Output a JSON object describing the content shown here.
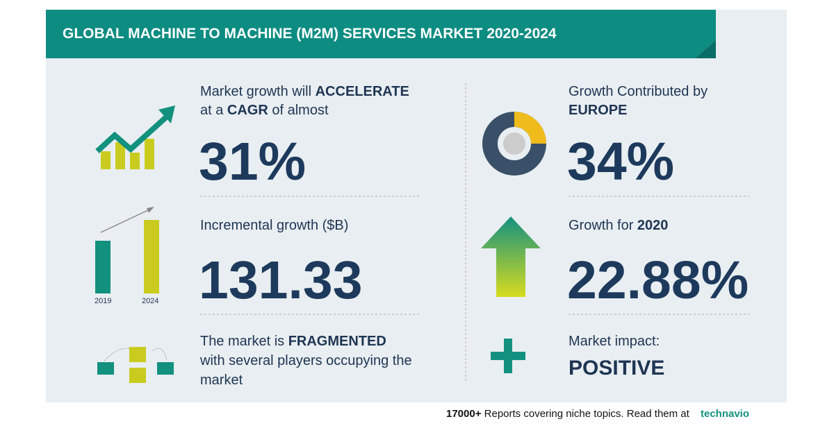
{
  "header": {
    "title": "GLOBAL MACHINE TO MACHINE (M2M) SERVICES MARKET 2020-2024"
  },
  "left": [
    {
      "text": [
        "Market growth will ",
        "ACCELERATE",
        "at a ",
        "CAGR",
        " of almost"
      ],
      "value": "31%"
    },
    {
      "text": [
        "Incremental growth ($B)"
      ],
      "value": "131.33",
      "icon_labels": [
        "2019",
        "2024"
      ]
    },
    {
      "text": [
        "The market is ",
        "FRAGMENTED",
        "with several players occupying the",
        "market"
      ]
    }
  ],
  "right": [
    {
      "text": [
        "Growth Contributed by",
        "EUROPE"
      ],
      "value": "34%"
    },
    {
      "text": [
        "Growth for ",
        "2020"
      ],
      "value": "22.88%"
    },
    {
      "text": [
        "Market impact:",
        "POSITIVE"
      ]
    }
  ],
  "footer": {
    "count": "17000+",
    "text": "Reports covering niche topics. Read them at",
    "brand": "technavio"
  }
}
